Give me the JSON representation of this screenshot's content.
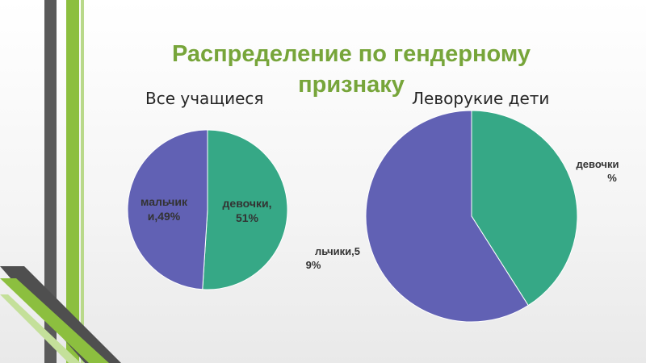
{
  "slide": {
    "title": "Распределение по гендерному признаку"
  },
  "colors": {
    "girls": "#36a886",
    "boys": "#6161b4",
    "title": "#77a53a",
    "deco_gray": "#4f4f4f",
    "deco_green": "#8cbf3f"
  },
  "chart_data": [
    {
      "type": "pie",
      "title": "Все учащиеся",
      "labels": [
        "девочки",
        "мальчики"
      ],
      "values": [
        51,
        49
      ],
      "data_labels": [
        [
          "девочки,",
          "51%"
        ],
        [
          "мальчик",
          "и,49%"
        ]
      ]
    },
    {
      "type": "pie",
      "title": "Леворукие дети",
      "labels": [
        "девочки",
        "мальчики"
      ],
      "values": [
        41,
        59
      ],
      "data_labels": [
        [
          "девочки",
          "%"
        ],
        [
          "льчики,5",
          "9%"
        ]
      ]
    }
  ]
}
